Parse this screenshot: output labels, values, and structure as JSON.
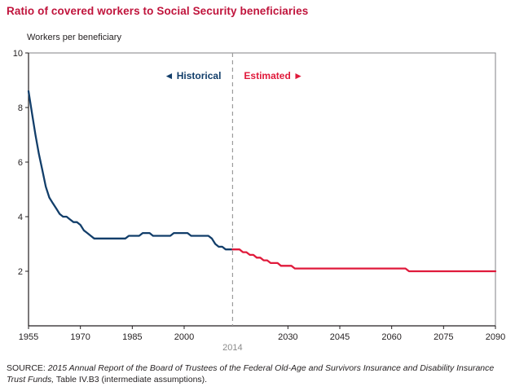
{
  "page": {
    "title": "Ratio of covered workers to Social Security beneficiaries",
    "source": {
      "prefix": "SOURCE: ",
      "italic": "2015 Annual Report of the Board of Trustees of the Federal Old-Age and Survivors Insurance and Disability Insurance Trust Funds,",
      "suffix": " Table IV.B3 (intermediate assumptions)."
    },
    "colors": {
      "title": "#c0143c",
      "axis": "#231f20",
      "frame": "#808285"
    }
  },
  "chart_data": {
    "type": "line",
    "title": "Ratio of covered workers to Social Security beneficiaries",
    "ylabel": "Workers per beneficiary",
    "xlabel": "",
    "xlim": [
      1955,
      2090
    ],
    "ylim": [
      0,
      10
    ],
    "x_ticks": [
      1955,
      1970,
      1985,
      2000,
      2030,
      2045,
      2060,
      2075,
      2090
    ],
    "y_ticks": [
      2,
      4,
      6,
      8,
      10
    ],
    "grid": false,
    "legend_position": "none",
    "divider": {
      "year": 2014,
      "label": "2014",
      "line_color": "#9b9b9b",
      "label_color": "#8a8a8a"
    },
    "annotations": [
      {
        "id": "historical",
        "text": "◄ Historical",
        "color": "#123e6a",
        "side": "left-of-divider"
      },
      {
        "id": "estimated",
        "text": "Estimated ►",
        "color": "#e01a3b",
        "side": "right-of-divider"
      }
    ],
    "series": [
      {
        "name": "Historical",
        "color": "#123e6a",
        "x_start": 1955,
        "x_step": 1,
        "values": [
          8.6,
          7.8,
          7.0,
          6.3,
          5.7,
          5.1,
          4.7,
          4.5,
          4.3,
          4.1,
          4.0,
          4.0,
          3.9,
          3.8,
          3.8,
          3.7,
          3.5,
          3.4,
          3.3,
          3.2,
          3.2,
          3.2,
          3.2,
          3.2,
          3.2,
          3.2,
          3.2,
          3.2,
          3.2,
          3.3,
          3.3,
          3.3,
          3.3,
          3.4,
          3.4,
          3.4,
          3.3,
          3.3,
          3.3,
          3.3,
          3.3,
          3.3,
          3.4,
          3.4,
          3.4,
          3.4,
          3.4,
          3.3,
          3.3,
          3.3,
          3.3,
          3.3,
          3.3,
          3.2,
          3.0,
          2.9,
          2.9,
          2.8,
          2.8,
          2.8
        ]
      },
      {
        "name": "Estimated",
        "color": "#e01a3b",
        "x_start": 2014,
        "x_step": 1,
        "values": [
          2.8,
          2.8,
          2.8,
          2.7,
          2.7,
          2.6,
          2.6,
          2.5,
          2.5,
          2.4,
          2.4,
          2.3,
          2.3,
          2.3,
          2.2,
          2.2,
          2.2,
          2.2,
          2.1,
          2.1,
          2.1,
          2.1,
          2.1,
          2.1,
          2.1,
          2.1,
          2.1,
          2.1,
          2.1,
          2.1,
          2.1,
          2.1,
          2.1,
          2.1,
          2.1,
          2.1,
          2.1,
          2.1,
          2.1,
          2.1,
          2.1,
          2.1,
          2.1,
          2.1,
          2.1,
          2.1,
          2.1,
          2.1,
          2.1,
          2.1,
          2.1,
          2.0,
          2.0,
          2.0,
          2.0,
          2.0,
          2.0,
          2.0,
          2.0,
          2.0,
          2.0,
          2.0,
          2.0,
          2.0,
          2.0,
          2.0,
          2.0,
          2.0,
          2.0,
          2.0,
          2.0,
          2.0,
          2.0,
          2.0,
          2.0,
          2.0,
          2.0
        ]
      }
    ]
  }
}
